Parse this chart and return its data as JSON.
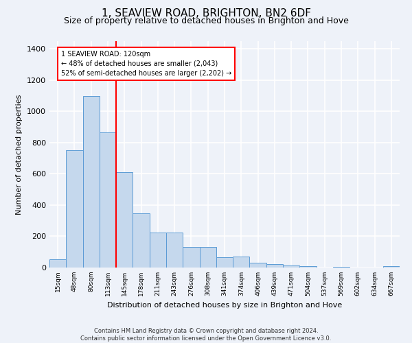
{
  "title": "1, SEAVIEW ROAD, BRIGHTON, BN2 6DF",
  "subtitle": "Size of property relative to detached houses in Brighton and Hove",
  "xlabel": "Distribution of detached houses by size in Brighton and Hove",
  "ylabel": "Number of detached properties",
  "footer": "Contains HM Land Registry data © Crown copyright and database right 2024.\nContains public sector information licensed under the Open Government Licence v3.0.",
  "categories": [
    "15sqm",
    "48sqm",
    "80sqm",
    "113sqm",
    "145sqm",
    "178sqm",
    "211sqm",
    "243sqm",
    "276sqm",
    "308sqm",
    "341sqm",
    "374sqm",
    "406sqm",
    "439sqm",
    "471sqm",
    "504sqm",
    "537sqm",
    "569sqm",
    "602sqm",
    "634sqm",
    "667sqm"
  ],
  "values": [
    52,
    750,
    1100,
    865,
    610,
    345,
    225,
    225,
    130,
    130,
    65,
    70,
    30,
    20,
    15,
    10,
    0,
    5,
    0,
    0,
    10
  ],
  "bar_color": "#c5d8ed",
  "bar_edge_color": "#5b9bd5",
  "red_line_x": 3.5,
  "red_line_label": "1 SEAVIEW ROAD: 120sqm",
  "annotation_line1": "← 48% of detached houses are smaller (2,043)",
  "annotation_line2": "52% of semi-detached houses are larger (2,202) →",
  "annotation_box_color": "white",
  "annotation_box_edge_color": "red",
  "ylim": [
    0,
    1450
  ],
  "yticks": [
    0,
    200,
    400,
    600,
    800,
    1000,
    1200,
    1400
  ],
  "background_color": "#eef2f9",
  "grid_color": "white",
  "title_fontsize": 11,
  "subtitle_fontsize": 9,
  "footer_fontsize": 6
}
